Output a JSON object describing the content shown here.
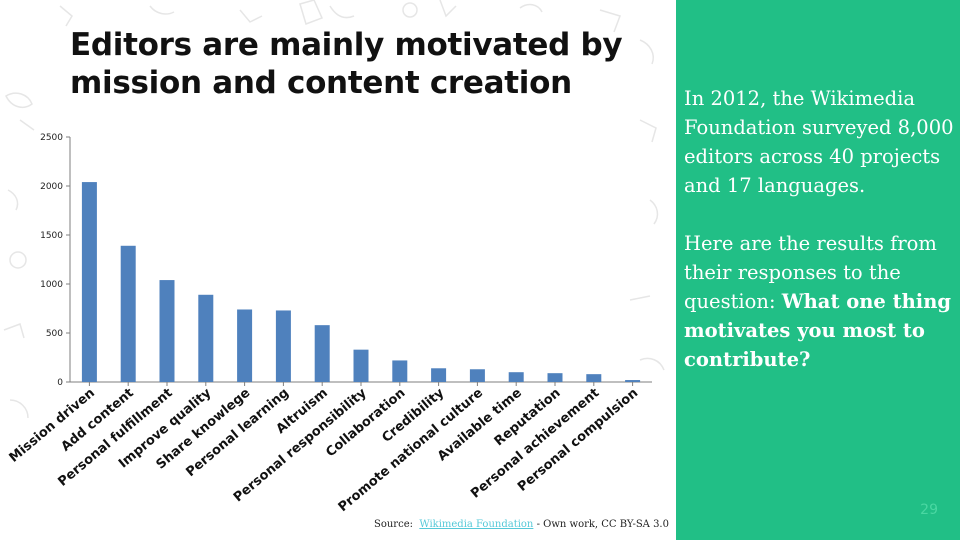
{
  "slide": {
    "title": "Editors are mainly motivated by mission and content creation",
    "page_number": "29"
  },
  "source": {
    "prefix": "Source:",
    "link_text": "Wikimedia Foundation",
    "suffix": " - Own work, CC BY-SA 3.0"
  },
  "info": {
    "paragraph1": "In 2012, the Wikimedia Foundation surveyed 8,000 editors across 40 projects and 17 languages.",
    "paragraph2_prefix": "Here are the results from their responses to the question: ",
    "paragraph2_bold": "What one thing motivates you most to contribute?"
  },
  "colors": {
    "bar": "#4f81bd",
    "accent_panel": "#21bf86",
    "link": "#56c9d8"
  },
  "chart_data": {
    "type": "bar",
    "title": "",
    "xlabel": "",
    "ylabel": "",
    "ylim": [
      0,
      2500
    ],
    "yticks": [
      0,
      500,
      1000,
      1500,
      2000,
      2500
    ],
    "grid": false,
    "categories": [
      "Mission driven",
      "Add content",
      "Personal fulfillment",
      "Improve quality",
      "Share knowlege",
      "Personal learning",
      "Altruism",
      "Personal responsibility",
      "Collaboration",
      "Credibility",
      "Promote national culture",
      "Available time",
      "Reputation",
      "Personal achievement",
      "Personal compulsion"
    ],
    "values": [
      2040,
      1390,
      1040,
      890,
      740,
      730,
      580,
      330,
      220,
      140,
      130,
      100,
      90,
      80,
      20
    ]
  }
}
